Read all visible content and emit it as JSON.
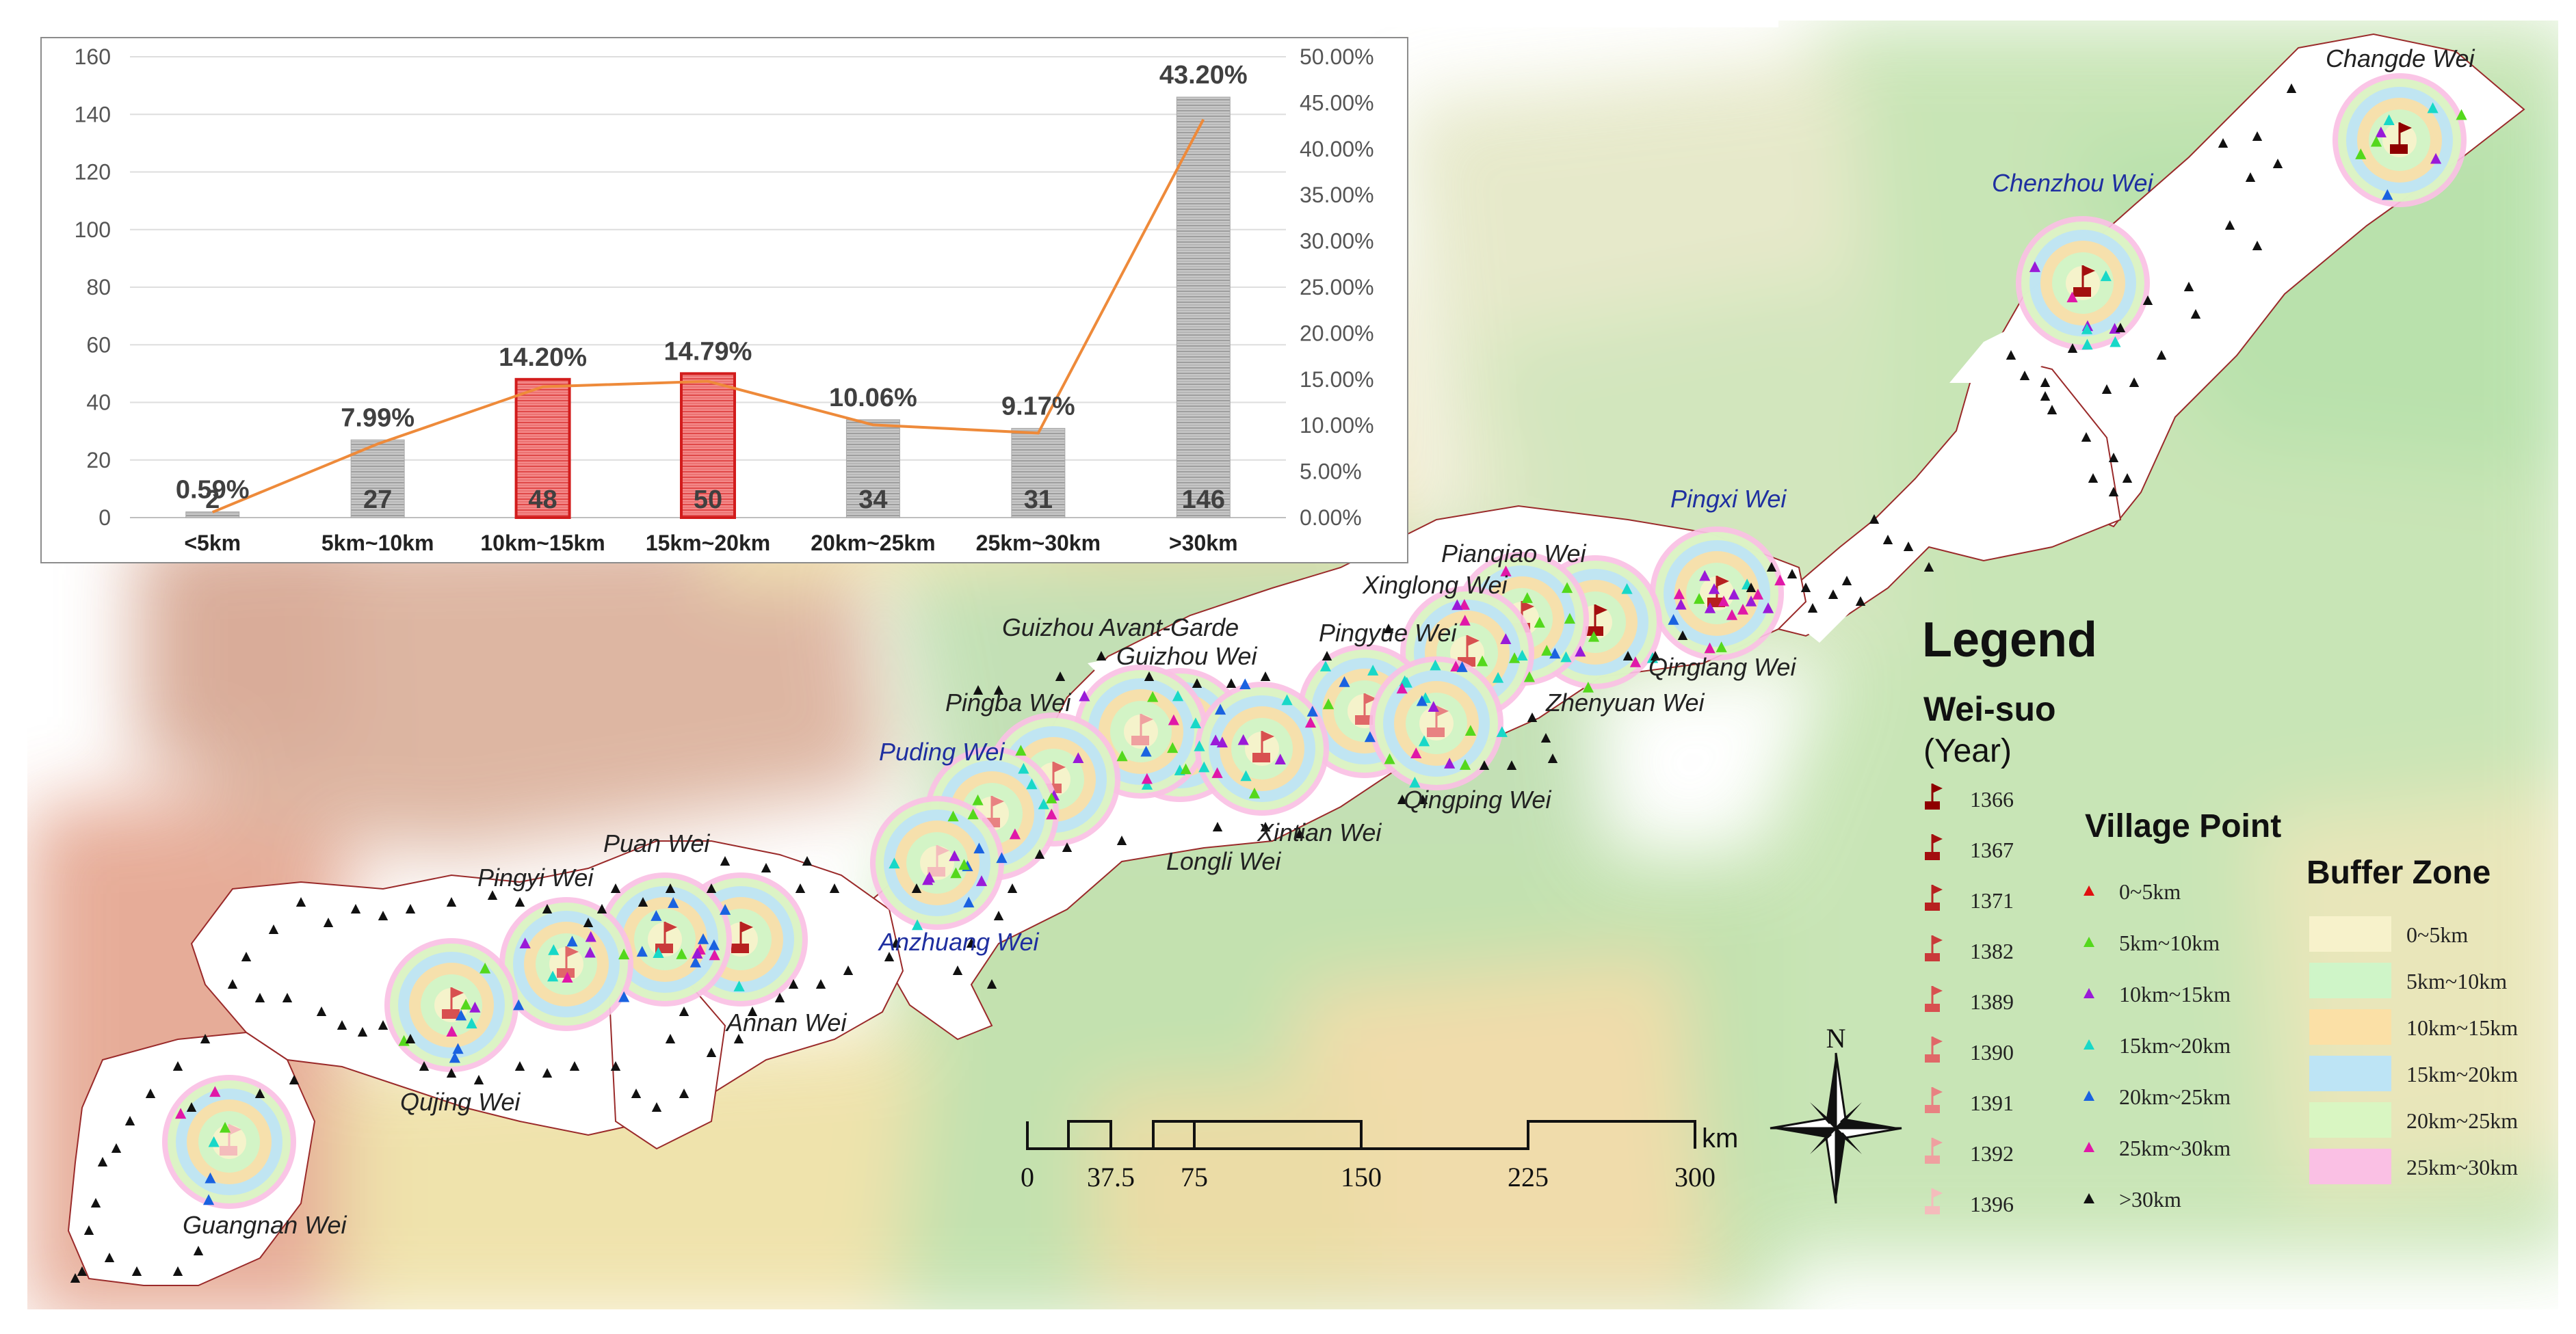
{
  "chart_data": {
    "type": "bar",
    "categories": [
      "<5km",
      "5km~10km",
      "10km~15km",
      "15km~20km",
      "20km~25km",
      "25km~30km",
      ">30km"
    ],
    "values": [
      2,
      27,
      48,
      50,
      34,
      31,
      146
    ],
    "percentages": [
      0.59,
      7.99,
      14.2,
      14.79,
      10.06,
      9.17,
      43.2
    ],
    "value_labels": [
      "2",
      "27",
      "48",
      "50",
      "34",
      "31",
      "146"
    ],
    "percent_labels": [
      "0.59%",
      "7.99%",
      "14.20%",
      "14.79%",
      "10.06%",
      "9.17%",
      "43.20%"
    ],
    "highlighted": [
      false,
      false,
      true,
      true,
      false,
      false,
      false
    ],
    "ylim": [
      0,
      160
    ],
    "yticks": [
      "0",
      "20",
      "40",
      "60",
      "80",
      "100",
      "120",
      "140",
      "160"
    ],
    "y2lim": [
      0,
      50
    ],
    "y2ticks": [
      "0.00%",
      "5.00%",
      "10.00%",
      "15.00%",
      "20.00%",
      "25.00%",
      "30.00%",
      "35.00%",
      "40.00%",
      "45.00%",
      "50.00%"
    ],
    "grid": true,
    "colors": {
      "bar": "#b4b4b4",
      "highlight": "#ee6b6b",
      "highlight_border": "#d21c1c",
      "line": "#ee8a3a"
    }
  },
  "wei_labels": [
    {
      "text": "Changde Wei",
      "blue": false
    },
    {
      "text": "Chenzhou Wei",
      "blue": true
    },
    {
      "text": "Pingxi Wei",
      "blue": true
    },
    {
      "text": "Pianqiao Wei",
      "blue": false
    },
    {
      "text": "Xinglong Wei",
      "blue": false
    },
    {
      "text": "Pingyue Wei",
      "blue": false
    },
    {
      "text": "Guizhou Avant-Garde",
      "blue": false
    },
    {
      "text": "Guizhou Wei",
      "blue": false
    },
    {
      "text": "Qinglang Wei",
      "blue": false
    },
    {
      "text": "Zhenyuan Wei",
      "blue": false
    },
    {
      "text": "Pingba Wei",
      "blue": false
    },
    {
      "text": "Puding Wei",
      "blue": true
    },
    {
      "text": "Qingping Wei",
      "blue": false
    },
    {
      "text": "Xintian Wei",
      "blue": false
    },
    {
      "text": "Longli Wei",
      "blue": false
    },
    {
      "text": "Puan Wei",
      "blue": false
    },
    {
      "text": "Pingyi Wei",
      "blue": false
    },
    {
      "text": "Anzhuang Wei",
      "blue": true
    },
    {
      "text": "Annan Wei",
      "blue": false
    },
    {
      "text": "Qujing Wei",
      "blue": false
    },
    {
      "text": "Guangnan Wei",
      "blue": false
    }
  ],
  "legend": {
    "title": "Legend",
    "weisuo_title": "Wei-suo",
    "weisuo_subtitle": "(Year)",
    "years": [
      {
        "label": "1366",
        "color": "#8e0000"
      },
      {
        "label": "1367",
        "color": "#a30f0f"
      },
      {
        "label": "1371",
        "color": "#b72020"
      },
      {
        "label": "1382",
        "color": "#c93a3a"
      },
      {
        "label": "1389",
        "color": "#d85050"
      },
      {
        "label": "1390",
        "color": "#e06868"
      },
      {
        "label": "1391",
        "color": "#e88282"
      },
      {
        "label": "1392",
        "color": "#efa0a0"
      },
      {
        "label": "1396",
        "color": "#f4bcbc"
      }
    ],
    "village_title": "Village Point",
    "village_items": [
      {
        "label": "0~5km",
        "color": "#e01010"
      },
      {
        "label": "5km~10km",
        "color": "#54d81c"
      },
      {
        "label": "10km~15km",
        "color": "#9a1ad8"
      },
      {
        "label": "15km~20km",
        "color": "#18d8c8"
      },
      {
        "label": "20km~25km",
        "color": "#1a62e0"
      },
      {
        "label": "25km~30km",
        "color": "#e018a8"
      },
      {
        "label": ">30km",
        "color": "#111111"
      }
    ],
    "buffer_title": "Buffer Zone",
    "buffer_items": [
      {
        "label": "0~5km",
        "color": "#f7f2cb"
      },
      {
        "label": "5km~10km",
        "color": "#cff5c8"
      },
      {
        "label": "10km~15km",
        "color": "#fbe0a6"
      },
      {
        "label": "15km~20km",
        "color": "#bde4f5"
      },
      {
        "label": "20km~25km",
        "color": "#d9f6c2"
      },
      {
        "label": "25km~30km",
        "color": "#fac0e4"
      }
    ]
  },
  "scale_bar": {
    "ticks": [
      "0",
      "37.5",
      "75",
      "150",
      "225",
      "300"
    ],
    "unit": "km"
  },
  "north_arrow": {
    "label": "N"
  }
}
